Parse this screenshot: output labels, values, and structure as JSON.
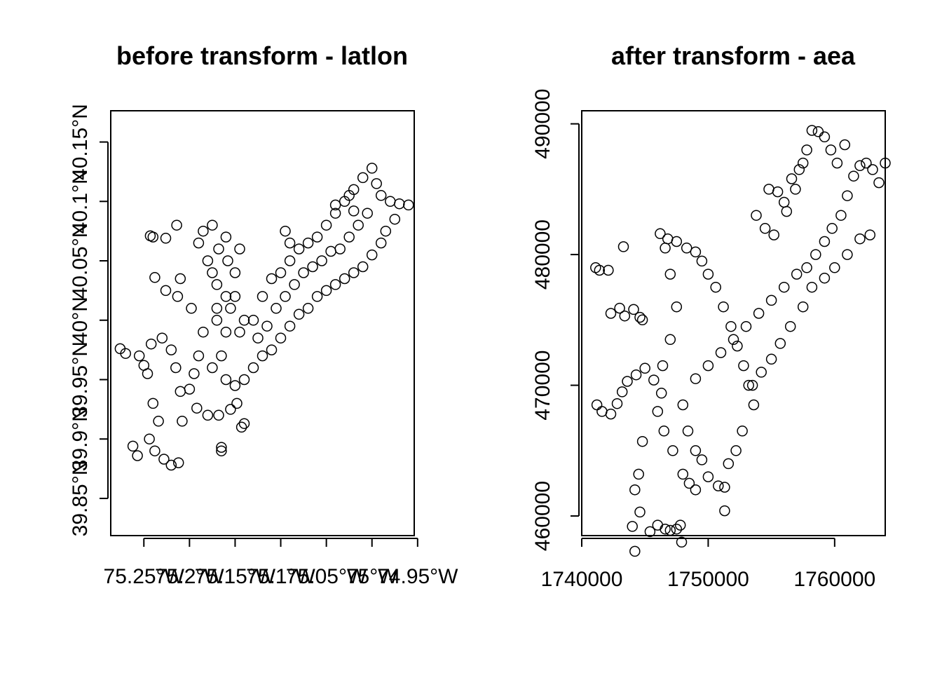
{
  "chart_data": [
    {
      "type": "scatter",
      "title": "before transform - latlon",
      "xlabel": "",
      "ylabel": "",
      "xlim": [
        -75.2863,
        -74.9537
      ],
      "ylim": [
        39.8187,
        40.1763
      ],
      "x_ticks": [
        {
          "value": -75.25,
          "label": "75.25°W"
        },
        {
          "value": -75.2,
          "label": "75.2°W"
        },
        {
          "value": -75.15,
          "label": "75.15°W"
        },
        {
          "value": -75.1,
          "label": "75.1°W"
        },
        {
          "value": -75.05,
          "label": "75.05°W"
        },
        {
          "value": -75.0,
          "label": "75°W"
        },
        {
          "value": -74.95,
          "label": "74.95°W"
        }
      ],
      "y_ticks": [
        {
          "value": 39.85,
          "label": "39.85°N"
        },
        {
          "value": 39.9,
          "label": "39.9°N"
        },
        {
          "value": 39.95,
          "label": "39.95°N"
        },
        {
          "value": 40.0,
          "label": "40°N"
        },
        {
          "value": 40.05,
          "label": "40.05°N"
        },
        {
          "value": 40.1,
          "label": "40.1°N"
        },
        {
          "value": 40.15,
          "label": "40.15°N"
        }
      ],
      "grid": false,
      "marker": "open-circle",
      "points": [
        [
          -75.276,
          39.976
        ],
        [
          -75.27,
          39.972
        ],
        [
          -75.262,
          39.894
        ],
        [
          -75.257,
          39.886
        ],
        [
          -75.25,
          39.962
        ],
        [
          -75.246,
          39.955
        ],
        [
          -75.24,
          39.93
        ],
        [
          -75.234,
          39.915
        ],
        [
          -75.244,
          39.9
        ],
        [
          -75.238,
          39.89
        ],
        [
          -75.228,
          39.883
        ],
        [
          -75.22,
          39.878
        ],
        [
          -75.212,
          39.88
        ],
        [
          -75.208,
          39.915
        ],
        [
          -75.21,
          39.94
        ],
        [
          -75.215,
          39.96
        ],
        [
          -75.22,
          39.975
        ],
        [
          -75.23,
          39.985
        ],
        [
          -75.242,
          39.98
        ],
        [
          -75.255,
          39.97
        ],
        [
          -75.243,
          40.071
        ],
        [
          -75.24,
          40.07
        ],
        [
          -75.226,
          40.069
        ],
        [
          -75.214,
          40.08
        ],
        [
          -75.238,
          40.036
        ],
        [
          -75.226,
          40.025
        ],
        [
          -75.213,
          40.02
        ],
        [
          -75.21,
          40.035
        ],
        [
          -75.198,
          40.01
        ],
        [
          -75.185,
          39.99
        ],
        [
          -75.19,
          39.97
        ],
        [
          -75.195,
          39.955
        ],
        [
          -75.2,
          39.942
        ],
        [
          -75.192,
          39.926
        ],
        [
          -75.18,
          39.92
        ],
        [
          -75.168,
          39.92
        ],
        [
          -75.155,
          39.925
        ],
        [
          -75.148,
          39.93
        ],
        [
          -75.143,
          39.91
        ],
        [
          -75.14,
          39.913
        ],
        [
          -75.165,
          39.893
        ],
        [
          -75.165,
          39.89
        ],
        [
          -75.175,
          39.96
        ],
        [
          -75.17,
          40.0
        ],
        [
          -75.16,
          40.02
        ],
        [
          -75.15,
          40.04
        ],
        [
          -75.145,
          40.06
        ],
        [
          -75.16,
          40.07
        ],
        [
          -75.175,
          40.08
        ],
        [
          -75.185,
          40.075
        ],
        [
          -75.19,
          40.065
        ],
        [
          -75.18,
          40.05
        ],
        [
          -75.17,
          40.03
        ],
        [
          -75.155,
          40.01
        ],
        [
          -75.145,
          39.99
        ],
        [
          -75.13,
          40.0
        ],
        [
          -75.12,
          40.02
        ],
        [
          -75.11,
          40.035
        ],
        [
          -75.1,
          40.04
        ],
        [
          -75.09,
          40.05
        ],
        [
          -75.08,
          40.06
        ],
        [
          -75.07,
          40.065
        ],
        [
          -75.06,
          40.07
        ],
        [
          -75.05,
          40.08
        ],
        [
          -75.04,
          40.09
        ],
        [
          -75.03,
          40.1
        ],
        [
          -75.02,
          40.11
        ],
        [
          -75.01,
          40.12
        ],
        [
          -75.0,
          40.128
        ],
        [
          -74.995,
          40.115
        ],
        [
          -74.99,
          40.105
        ],
        [
          -74.98,
          40.1
        ],
        [
          -74.97,
          40.098
        ],
        [
          -74.96,
          40.097
        ],
        [
          -74.975,
          40.085
        ],
        [
          -74.985,
          40.075
        ],
        [
          -74.99,
          40.065
        ],
        [
          -75.0,
          40.055
        ],
        [
          -75.01,
          40.045
        ],
        [
          -75.02,
          40.04
        ],
        [
          -75.03,
          40.035
        ],
        [
          -75.04,
          40.03
        ],
        [
          -75.05,
          40.025
        ],
        [
          -75.06,
          40.02
        ],
        [
          -75.07,
          40.01
        ],
        [
          -75.08,
          40.005
        ],
        [
          -75.09,
          39.995
        ],
        [
          -75.1,
          39.985
        ],
        [
          -75.11,
          39.975
        ],
        [
          -75.12,
          39.97
        ],
        [
          -75.13,
          39.96
        ],
        [
          -75.14,
          39.95
        ],
        [
          -75.15,
          39.945
        ],
        [
          -75.16,
          39.95
        ],
        [
          -75.165,
          39.97
        ],
        [
          -75.16,
          39.99
        ],
        [
          -75.17,
          40.01
        ],
        [
          -75.175,
          40.04
        ],
        [
          -75.168,
          40.06
        ],
        [
          -75.158,
          40.05
        ],
        [
          -75.15,
          40.02
        ],
        [
          -75.14,
          40.0
        ],
        [
          -75.125,
          39.985
        ],
        [
          -75.115,
          39.995
        ],
        [
          -75.105,
          40.01
        ],
        [
          -75.095,
          40.02
        ],
        [
          -75.085,
          40.03
        ],
        [
          -75.075,
          40.04
        ],
        [
          -75.065,
          40.045
        ],
        [
          -75.055,
          40.05
        ],
        [
          -75.045,
          40.058
        ],
        [
          -75.035,
          40.06
        ],
        [
          -75.025,
          40.07
        ],
        [
          -75.015,
          40.08
        ],
        [
          -75.005,
          40.09
        ],
        [
          -75.095,
          40.075
        ],
        [
          -75.09,
          40.065
        ],
        [
          -75.04,
          40.097
        ],
        [
          -75.025,
          40.105
        ],
        [
          -75.02,
          40.092
        ]
      ]
    },
    {
      "type": "scatter",
      "title": "after transform - aea",
      "xlabel": "",
      "ylabel": "",
      "xlim": [
        1740000,
        1764000
      ],
      "ylim": [
        458500,
        491000
      ],
      "x_ticks": [
        {
          "value": 1740000,
          "label": "1740000"
        },
        {
          "value": 1750000,
          "label": "1750000"
        },
        {
          "value": 1760000,
          "label": "1760000"
        }
      ],
      "y_ticks": [
        {
          "value": 460000,
          "label": "460000"
        },
        {
          "value": 470000,
          "label": "470000"
        },
        {
          "value": 480000,
          "label": "480000"
        },
        {
          "value": 490000,
          "label": "490000"
        }
      ],
      "grid": false,
      "marker": "open-circle",
      "points": [
        [
          1741100,
          479000
        ],
        [
          1741400,
          478800
        ],
        [
          1742100,
          478800
        ],
        [
          1743300,
          480600
        ],
        [
          1742300,
          475500
        ],
        [
          1743000,
          475900
        ],
        [
          1743400,
          475300
        ],
        [
          1744100,
          475800
        ],
        [
          1744600,
          475200
        ],
        [
          1744800,
          475000
        ],
        [
          1741200,
          468500
        ],
        [
          1741600,
          468000
        ],
        [
          1742300,
          467800
        ],
        [
          1742800,
          468600
        ],
        [
          1743200,
          469500
        ],
        [
          1743600,
          470300
        ],
        [
          1744300,
          470800
        ],
        [
          1745000,
          471300
        ],
        [
          1745700,
          470400
        ],
        [
          1746300,
          469400
        ],
        [
          1744800,
          465700
        ],
        [
          1744500,
          463200
        ],
        [
          1744200,
          462000
        ],
        [
          1744600,
          460300
        ],
        [
          1744000,
          459200
        ],
        [
          1744200,
          457300
        ],
        [
          1745400,
          458800
        ],
        [
          1746000,
          459300
        ],
        [
          1746600,
          459000
        ],
        [
          1747000,
          458900
        ],
        [
          1747500,
          459000
        ],
        [
          1747800,
          459300
        ],
        [
          1747900,
          458000
        ],
        [
          1748500,
          462500
        ],
        [
          1749000,
          462000
        ],
        [
          1748000,
          463200
        ],
        [
          1747200,
          465000
        ],
        [
          1746500,
          466500
        ],
        [
          1746000,
          468000
        ],
        [
          1746400,
          471500
        ],
        [
          1747000,
          473500
        ],
        [
          1747500,
          476000
        ],
        [
          1747000,
          478500
        ],
        [
          1746600,
          480500
        ],
        [
          1746200,
          481600
        ],
        [
          1746800,
          481200
        ],
        [
          1747500,
          481000
        ],
        [
          1748300,
          480500
        ],
        [
          1749000,
          480200
        ],
        [
          1749500,
          479500
        ],
        [
          1750000,
          478500
        ],
        [
          1750600,
          477500
        ],
        [
          1751200,
          476000
        ],
        [
          1751800,
          474500
        ],
        [
          1752300,
          473000
        ],
        [
          1752800,
          471500
        ],
        [
          1753200,
          470000
        ],
        [
          1753600,
          468500
        ],
        [
          1752700,
          466500
        ],
        [
          1752200,
          465000
        ],
        [
          1751600,
          464000
        ],
        [
          1751300,
          462200
        ],
        [
          1751300,
          460400
        ],
        [
          1750800,
          462300
        ],
        [
          1750000,
          463000
        ],
        [
          1749500,
          464300
        ],
        [
          1749000,
          465000
        ],
        [
          1748400,
          466500
        ],
        [
          1748000,
          468500
        ],
        [
          1749000,
          470500
        ],
        [
          1750000,
          471500
        ],
        [
          1751000,
          472500
        ],
        [
          1752000,
          473500
        ],
        [
          1753000,
          474500
        ],
        [
          1754000,
          475500
        ],
        [
          1755000,
          476500
        ],
        [
          1756000,
          477500
        ],
        [
          1757000,
          478500
        ],
        [
          1757800,
          479000
        ],
        [
          1758500,
          480000
        ],
        [
          1759200,
          481000
        ],
        [
          1759800,
          482000
        ],
        [
          1760500,
          483000
        ],
        [
          1761000,
          484500
        ],
        [
          1761500,
          486000
        ],
        [
          1762000,
          486800
        ],
        [
          1762500,
          487000
        ],
        [
          1763000,
          486500
        ],
        [
          1763500,
          485500
        ],
        [
          1764000,
          487000
        ],
        [
          1762800,
          481500
        ],
        [
          1762000,
          481200
        ],
        [
          1761000,
          480000
        ],
        [
          1760000,
          479000
        ],
        [
          1759200,
          478200
        ],
        [
          1758200,
          477500
        ],
        [
          1757500,
          476000
        ],
        [
          1756500,
          474500
        ],
        [
          1755700,
          473200
        ],
        [
          1755000,
          472000
        ],
        [
          1754200,
          471000
        ],
        [
          1753500,
          470000
        ],
        [
          1753800,
          483000
        ],
        [
          1754500,
          482000
        ],
        [
          1755200,
          481500
        ],
        [
          1756000,
          484000
        ],
        [
          1756600,
          485800
        ],
        [
          1757200,
          486500
        ],
        [
          1757800,
          488000
        ],
        [
          1758200,
          489500
        ],
        [
          1758700,
          489400
        ],
        [
          1759200,
          489000
        ],
        [
          1759700,
          488000
        ],
        [
          1760200,
          487000
        ],
        [
          1760800,
          488400
        ],
        [
          1757500,
          487000
        ],
        [
          1756900,
          485000
        ],
        [
          1756200,
          483300
        ],
        [
          1755500,
          484800
        ],
        [
          1754800,
          485000
        ]
      ]
    }
  ]
}
